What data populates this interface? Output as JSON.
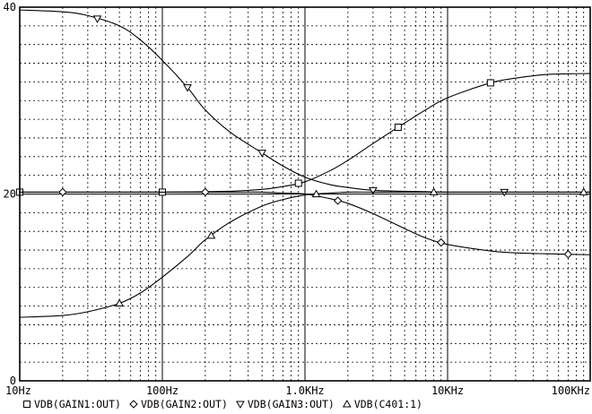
{
  "chart_data": {
    "type": "line",
    "x_scale": "log",
    "xlim": [
      10,
      100000
    ],
    "ylim": [
      0,
      40
    ],
    "grid": true,
    "legend_position": "bottom",
    "x_tick_labels": [
      {
        "value": 10,
        "label": "10Hz"
      },
      {
        "value": 100,
        "label": "100Hz"
      },
      {
        "value": 1000,
        "label": "1.0KHz"
      },
      {
        "value": 10000,
        "label": "10KHz"
      },
      {
        "value": 100000,
        "label": "100KHz"
      }
    ],
    "y_tick_labels": [
      {
        "value": 0,
        "label": "0"
      },
      {
        "value": 20,
        "label": "20"
      },
      {
        "value": 40,
        "label": "40"
      }
    ],
    "series": [
      {
        "name": "VDB(GAIN1:OUT)",
        "marker": "square",
        "x": [
          10,
          30,
          100,
          300,
          500,
          700,
          1000,
          1500,
          2000,
          3000,
          5000,
          7000,
          10000,
          20000,
          30000,
          50000,
          100000
        ],
        "y": [
          20.2,
          20.2,
          20.2,
          20.3,
          20.5,
          20.8,
          21.3,
          22.5,
          23.6,
          25.4,
          27.6,
          29.0,
          30.3,
          31.9,
          32.4,
          32.8,
          32.9
        ],
        "marker_x": [
          10,
          100,
          900,
          4500,
          20000
        ]
      },
      {
        "name": "VDB(GAIN2:OUT)",
        "marker": "diamond",
        "x": [
          10,
          30,
          100,
          300,
          500,
          700,
          1000,
          1500,
          2000,
          3000,
          5000,
          7000,
          10000,
          20000,
          30000,
          50000,
          100000
        ],
        "y": [
          20.2,
          20.2,
          20.2,
          20.2,
          20.2,
          20.1,
          20.0,
          19.5,
          19.0,
          17.9,
          16.3,
          15.3,
          14.6,
          13.9,
          13.7,
          13.6,
          13.5
        ],
        "marker_x": [
          20,
          200,
          1700,
          9000,
          70000
        ]
      },
      {
        "name": "VDB(GAIN3:OUT)",
        "marker": "triangle-down",
        "x": [
          10,
          20,
          30,
          50,
          70,
          100,
          150,
          200,
          300,
          500,
          700,
          1000,
          1500,
          2000,
          3000,
          5000,
          10000,
          30000,
          100000
        ],
        "y": [
          39.7,
          39.5,
          39.1,
          38.0,
          36.5,
          34.3,
          31.4,
          29.0,
          26.6,
          24.4,
          23.0,
          21.8,
          21.0,
          20.7,
          20.4,
          20.3,
          20.2,
          20.2,
          20.2
        ],
        "marker_x": [
          35,
          150,
          500,
          3000,
          25000
        ]
      },
      {
        "name": "VDB(C401:1)",
        "marker": "triangle-up",
        "x": [
          10,
          20,
          30,
          50,
          70,
          100,
          150,
          200,
          300,
          500,
          700,
          1000,
          1500,
          2000,
          3000,
          5000,
          10000,
          30000,
          100000
        ],
        "y": [
          6.8,
          7.0,
          7.4,
          8.3,
          9.4,
          11.1,
          13.3,
          15.1,
          17.0,
          18.7,
          19.4,
          19.9,
          20.1,
          20.2,
          20.2,
          20.2,
          20.2,
          20.2,
          20.2
        ],
        "marker_x": [
          50,
          220,
          1200,
          8000,
          90000
        ]
      }
    ]
  }
}
